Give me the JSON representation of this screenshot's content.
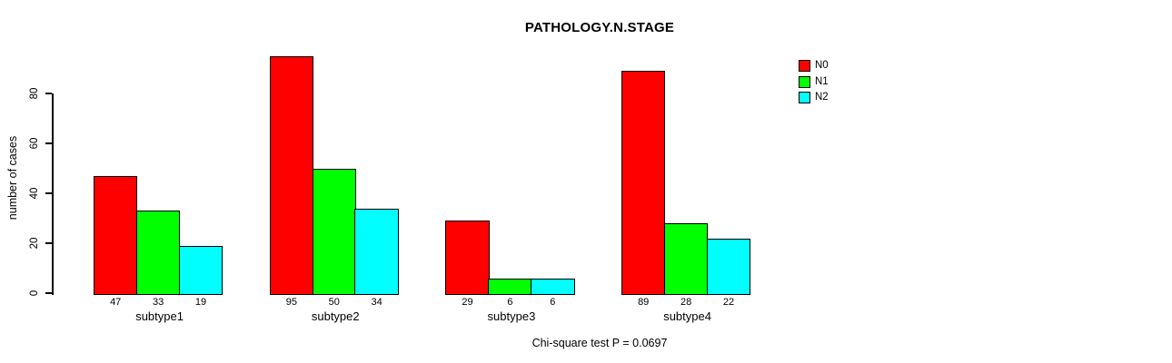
{
  "chart_data": {
    "type": "bar",
    "title": "PATHOLOGY.N.STAGE",
    "ylabel": "number of cases",
    "xlabel": "",
    "footer": "Chi-square test P = 0.0697",
    "categories": [
      "subtype1",
      "subtype2",
      "subtype3",
      "subtype4"
    ],
    "series": [
      {
        "name": "N0",
        "color": "#ff0000",
        "values": [
          47,
          95,
          29,
          89
        ]
      },
      {
        "name": "N1",
        "color": "#00ff00",
        "values": [
          33,
          50,
          6,
          28
        ]
      },
      {
        "name": "N2",
        "color": "#00ffff",
        "values": [
          19,
          34,
          6,
          22
        ]
      }
    ],
    "yticks": [
      0,
      20,
      40,
      60,
      80
    ],
    "ylim": [
      0,
      95
    ],
    "grid": false,
    "legend_position": "top-right",
    "bar_value_labels_shown": true,
    "colors": {
      "background": "#ffffff",
      "axis": "#000000",
      "text": "#000000"
    }
  }
}
